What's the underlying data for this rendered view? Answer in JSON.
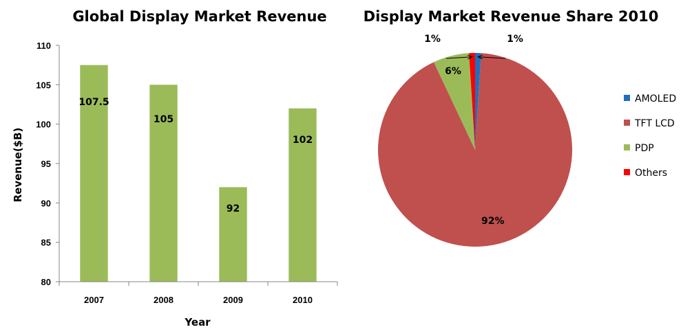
{
  "chart_data": [
    {
      "type": "bar",
      "title": "Global Display Market Revenue",
      "xlabel": "Year",
      "ylabel": "Revenue($B)",
      "categories": [
        "2007",
        "2008",
        "2009",
        "2010"
      ],
      "values": [
        107.5,
        105,
        92,
        102
      ],
      "value_labels": [
        "107.5",
        "105",
        "92",
        "102"
      ],
      "ylim": [
        80,
        110
      ],
      "yticks": [
        80,
        85,
        90,
        95,
        100,
        105,
        110
      ],
      "ytick_labels": [
        "80",
        "85",
        "90",
        "95",
        "100",
        "105",
        "110"
      ],
      "bar_color": "#9BBB59",
      "grid": false
    },
    {
      "type": "pie",
      "title": "Display Market Revenue Share 2010",
      "labels": [
        "AMOLED",
        "TFT LCD",
        "PDP",
        "Others"
      ],
      "values": [
        1,
        92,
        6,
        1
      ],
      "value_labels": [
        "1%",
        "92%",
        "6%",
        "1%"
      ],
      "colors": [
        "#1F6FBF",
        "#C0504D",
        "#9BBB59",
        "#FF0000"
      ],
      "legend_position": "right"
    }
  ]
}
